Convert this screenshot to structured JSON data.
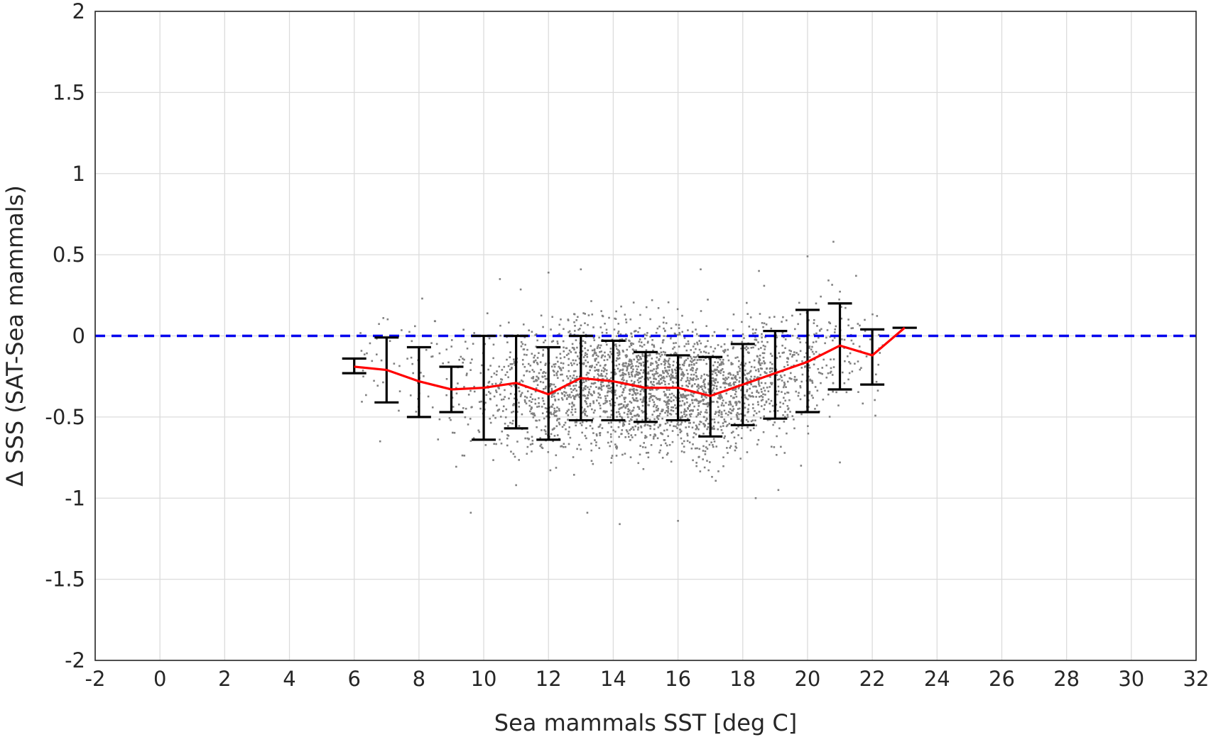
{
  "chart_data": {
    "type": "scatter",
    "xlabel": "Sea mammals SST [deg C]",
    "ylabel": "Δ SSS (SAT-Sea mammals)",
    "xlim": [
      -2,
      32
    ],
    "ylim": [
      -2,
      2
    ],
    "x_ticks": [
      -2,
      0,
      2,
      4,
      6,
      8,
      10,
      12,
      14,
      16,
      18,
      20,
      22,
      24,
      26,
      28,
      30,
      32
    ],
    "y_ticks": [
      -2,
      -1.5,
      -1,
      -0.5,
      0,
      0.5,
      1,
      1.5,
      2
    ],
    "x_tick_labels": [
      "-2",
      "0",
      "2",
      "4",
      "6",
      "8",
      "10",
      "12",
      "14",
      "16",
      "18",
      "20",
      "22",
      "24",
      "26",
      "28",
      "30",
      "32"
    ],
    "y_tick_labels": [
      "-2",
      "-1.5",
      "-1",
      "-0.5",
      "0",
      "0.5",
      "1",
      "1.5",
      "2"
    ],
    "grid": true,
    "reference_line": {
      "y": 0,
      "color": "#0000ee",
      "style": "dashed"
    },
    "scatter": {
      "color": "#808080",
      "x_range": [
        6,
        22.5
      ],
      "y_range": [
        -1.17,
        0.58
      ],
      "points": [
        [
          9.6,
          -1.09
        ],
        [
          14.2,
          -1.16
        ],
        [
          16.0,
          -1.14
        ],
        [
          20.8,
          0.58
        ],
        [
          20.0,
          0.49
        ],
        [
          6.8,
          -0.65
        ],
        [
          8.1,
          0.23
        ],
        [
          12.0,
          0.39
        ],
        [
          13.0,
          0.41
        ],
        [
          16.7,
          0.41
        ],
        [
          18.5,
          0.4
        ],
        [
          21.5,
          0.37
        ],
        [
          11.0,
          -0.92
        ],
        [
          13.2,
          -1.09
        ],
        [
          18.4,
          -1.0
        ],
        [
          19.8,
          -0.8
        ],
        [
          21.0,
          -0.78
        ],
        [
          10.5,
          0.35
        ],
        [
          15.2,
          0.22
        ],
        [
          19.1,
          -0.95
        ]
      ]
    },
    "series": [
      {
        "type": "errorbar",
        "color": "#000000",
        "x": [
          6,
          7,
          8,
          9,
          10,
          11,
          12,
          13,
          14,
          15,
          16,
          17,
          18,
          19,
          20,
          21,
          22,
          23
        ],
        "lower": [
          -0.23,
          -0.41,
          -0.5,
          -0.47,
          -0.64,
          -0.57,
          -0.64,
          -0.52,
          -0.52,
          -0.53,
          -0.52,
          -0.62,
          -0.55,
          -0.51,
          -0.47,
          -0.33,
          -0.3,
          0.05
        ],
        "upper": [
          -0.14,
          -0.01,
          -0.07,
          -0.19,
          0.0,
          0.0,
          -0.07,
          0.0,
          -0.03,
          -0.1,
          -0.12,
          -0.13,
          -0.05,
          0.03,
          0.16,
          0.2,
          0.04,
          0.05
        ]
      },
      {
        "type": "line",
        "color": "#ff0000",
        "x": [
          6,
          7,
          8,
          9,
          10,
          11,
          12,
          13,
          14,
          15,
          16,
          17,
          18,
          19,
          20,
          21,
          22,
          23
        ],
        "values": [
          -0.19,
          -0.21,
          -0.28,
          -0.33,
          -0.32,
          -0.29,
          -0.36,
          -0.26,
          -0.28,
          -0.32,
          -0.32,
          -0.37,
          -0.3,
          -0.23,
          -0.16,
          -0.06,
          -0.12,
          0.05
        ]
      }
    ]
  }
}
